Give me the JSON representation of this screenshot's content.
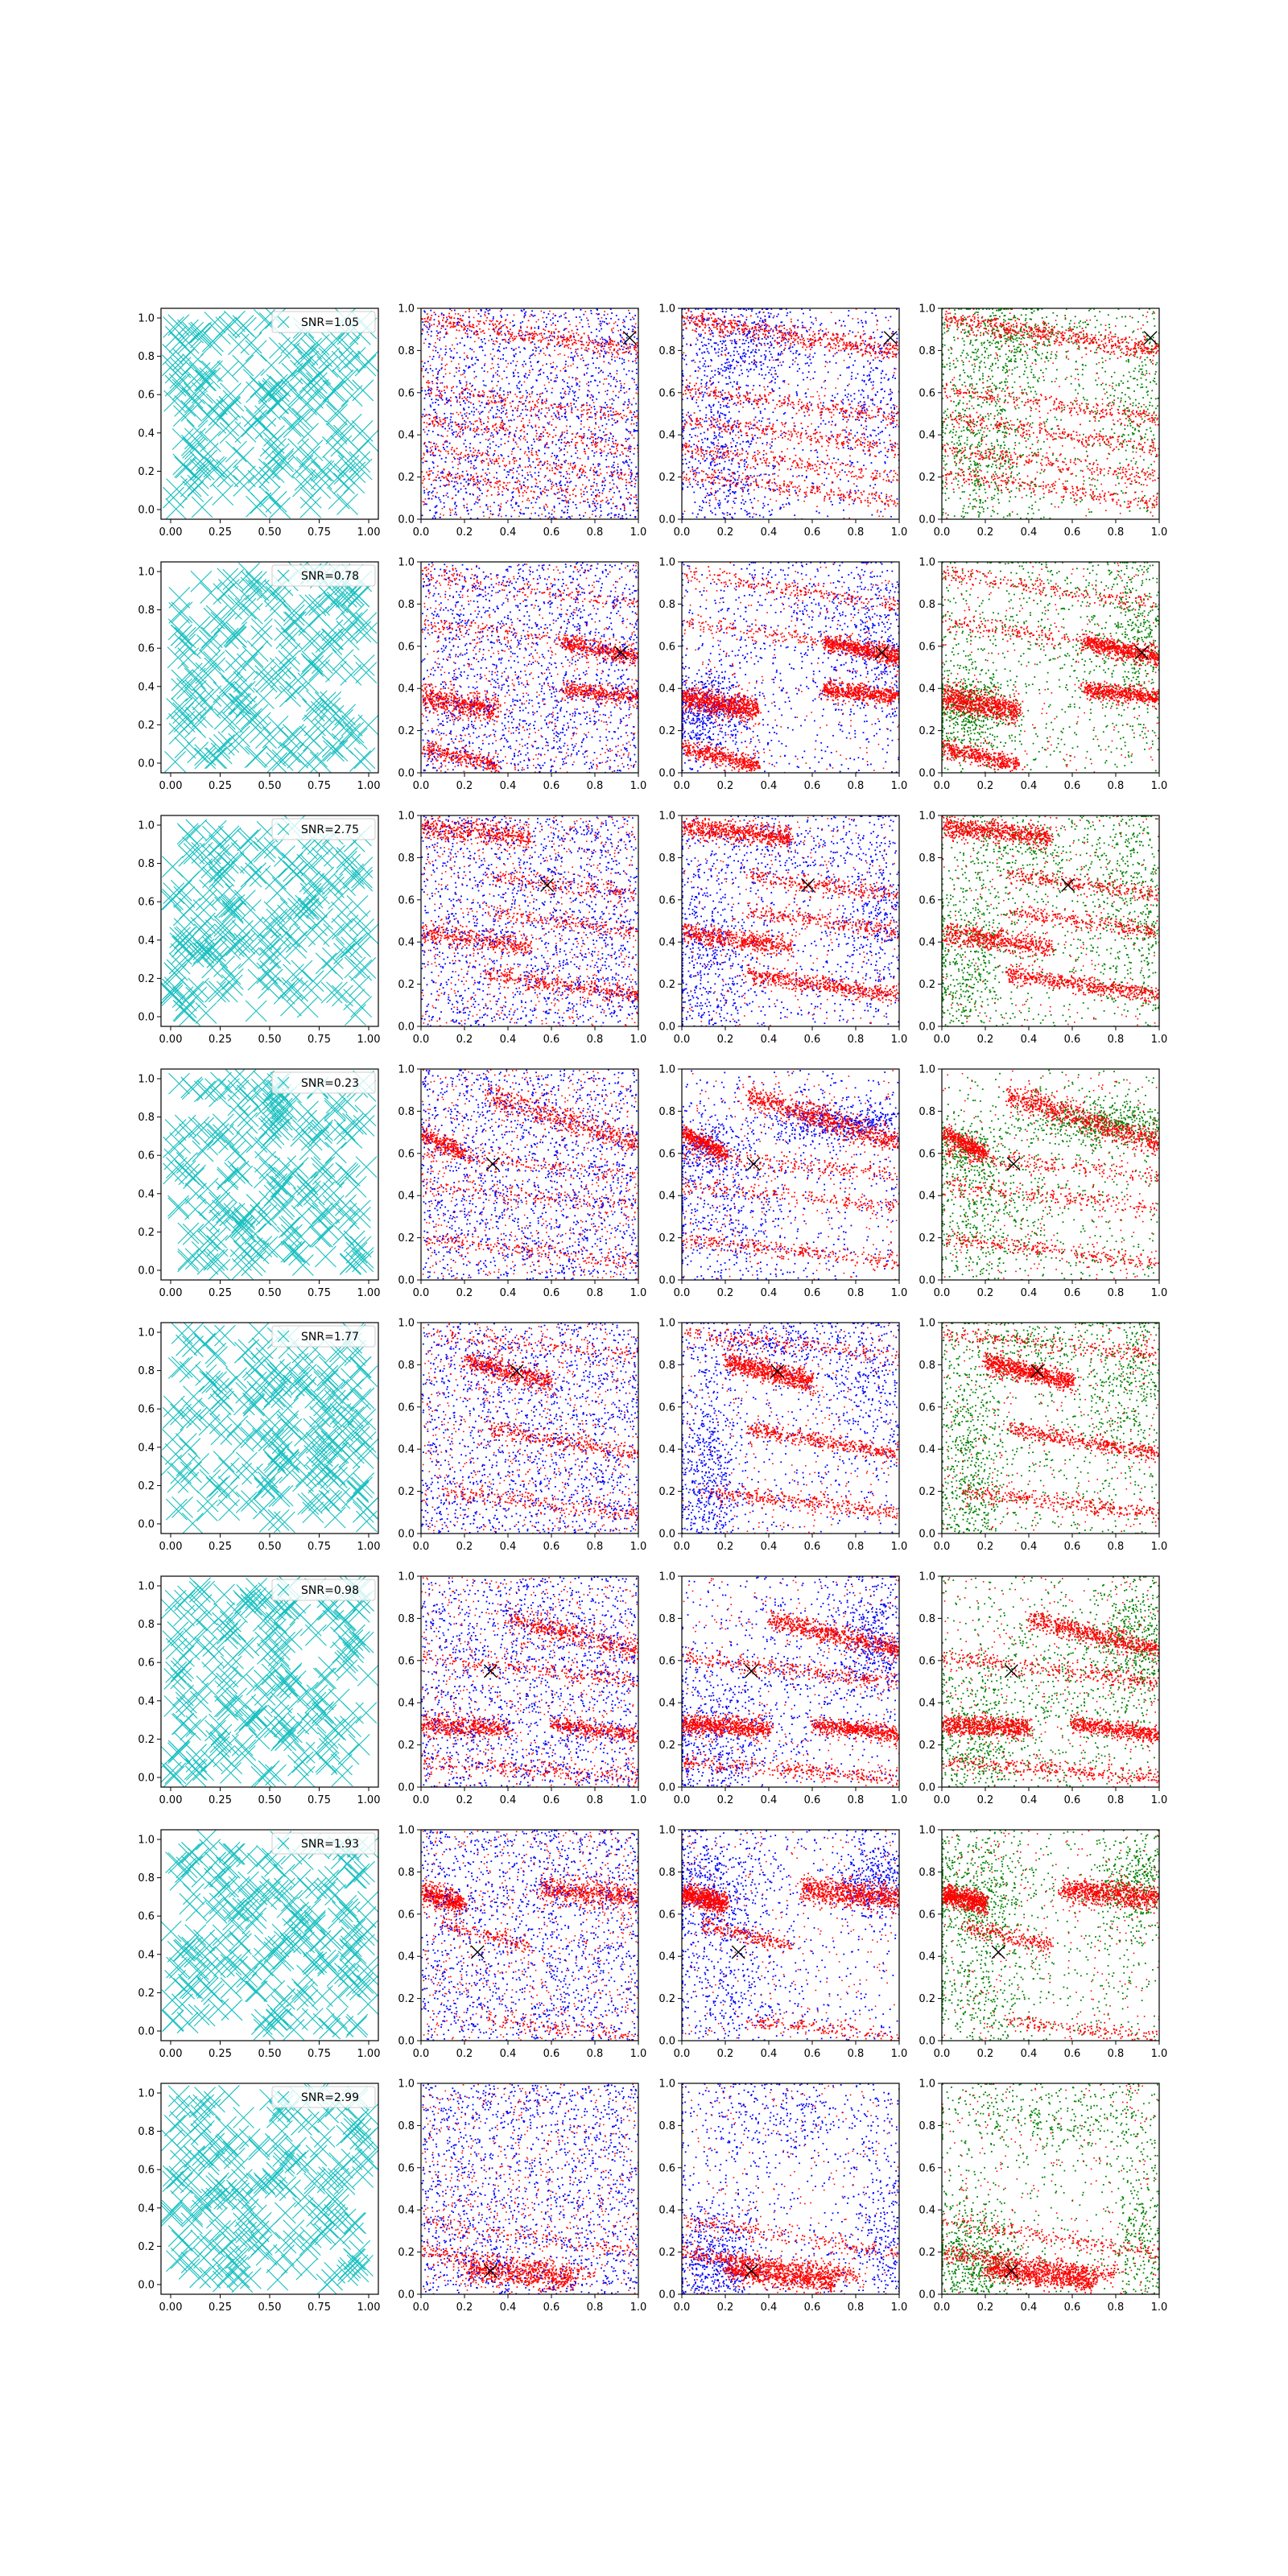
{
  "figure": {
    "rows": 8,
    "columns": 4,
    "colors": {
      "cyan": "#17bfbf",
      "blue": "#0000ff",
      "red": "#ff0000",
      "green": "#008000",
      "black": "#000000"
    }
  },
  "chart_data": [
    {
      "type": "scatter",
      "row": 1,
      "legend": "SNR=1.05",
      "marker": [
        0.96,
        0.86
      ],
      "xlim": [
        0,
        1
      ],
      "ylim": [
        0,
        1
      ],
      "bands": [
        {
          "y0": 0.95,
          "y1": 0.8,
          "x0": 0.0,
          "x1": 1.0,
          "w": 0.025,
          "d": 1.0
        },
        {
          "y0": 0.62,
          "y1": 0.48,
          "x0": 0.0,
          "x1": 1.0,
          "w": 0.02,
          "d": 0.5
        },
        {
          "y0": 0.48,
          "y1": 0.34,
          "x0": 0.0,
          "x1": 1.0,
          "w": 0.02,
          "d": 0.5
        },
        {
          "y0": 0.34,
          "y1": 0.2,
          "x0": 0.0,
          "x1": 1.0,
          "w": 0.02,
          "d": 0.45
        },
        {
          "y0": 0.22,
          "y1": 0.08,
          "x0": 0.0,
          "x1": 1.0,
          "w": 0.02,
          "d": 0.45
        }
      ],
      "clusters": [
        {
          "x": 0.18,
          "y": 0.35,
          "sx": 0.12,
          "sy": 0.3,
          "w": 0.5
        },
        {
          "x": 0.3,
          "y": 0.85,
          "sx": 0.15,
          "sy": 0.1,
          "w": 0.3
        },
        {
          "x": 0.9,
          "y": 0.6,
          "sx": 0.1,
          "sy": 0.2,
          "w": 0.2
        }
      ]
    },
    {
      "type": "scatter",
      "row": 2,
      "legend": "SNR=0.78",
      "marker": [
        0.92,
        0.57
      ],
      "xlim": [
        0,
        1
      ],
      "ylim": [
        0,
        1
      ],
      "bands": [
        {
          "y0": 0.36,
          "y1": 0.3,
          "x0": 0.0,
          "x1": 0.35,
          "w": 0.03,
          "d": 1.4
        },
        {
          "y0": 0.62,
          "y1": 0.55,
          "x0": 0.65,
          "x1": 1.0,
          "w": 0.02,
          "d": 1.0
        },
        {
          "y0": 0.4,
          "y1": 0.36,
          "x0": 0.65,
          "x1": 1.0,
          "w": 0.02,
          "d": 1.0
        },
        {
          "y0": 0.12,
          "y1": 0.04,
          "x0": 0.0,
          "x1": 0.35,
          "w": 0.02,
          "d": 0.8
        },
        {
          "y0": 0.95,
          "y1": 0.8,
          "x0": 0.0,
          "x1": 1.0,
          "w": 0.02,
          "d": 0.4
        },
        {
          "y0": 0.72,
          "y1": 0.58,
          "x0": 0.0,
          "x1": 1.0,
          "w": 0.02,
          "d": 0.4
        }
      ],
      "clusters": [
        {
          "x": 0.12,
          "y": 0.3,
          "sx": 0.1,
          "sy": 0.1,
          "w": 0.45
        },
        {
          "x": 0.9,
          "y": 0.62,
          "sx": 0.1,
          "sy": 0.2,
          "w": 0.35
        },
        {
          "x": 0.5,
          "y": 0.75,
          "sx": 0.3,
          "sy": 0.2,
          "w": 0.2
        }
      ]
    },
    {
      "type": "scatter",
      "row": 3,
      "legend": "SNR=2.75",
      "marker": [
        0.58,
        0.67
      ],
      "xlim": [
        0,
        1
      ],
      "ylim": [
        0,
        1
      ],
      "bands": [
        {
          "y0": 0.95,
          "y1": 0.9,
          "x0": 0.0,
          "x1": 0.5,
          "w": 0.025,
          "d": 1.2
        },
        {
          "y0": 0.45,
          "y1": 0.38,
          "x0": 0.0,
          "x1": 0.5,
          "w": 0.025,
          "d": 1.0
        },
        {
          "y0": 0.25,
          "y1": 0.15,
          "x0": 0.3,
          "x1": 1.0,
          "w": 0.02,
          "d": 1.0
        },
        {
          "y0": 0.72,
          "y1": 0.62,
          "x0": 0.3,
          "x1": 1.0,
          "w": 0.02,
          "d": 0.5
        },
        {
          "y0": 0.55,
          "y1": 0.45,
          "x0": 0.3,
          "x1": 1.0,
          "w": 0.02,
          "d": 0.5
        }
      ],
      "clusters": [
        {
          "x": 0.12,
          "y": 0.3,
          "sx": 0.12,
          "sy": 0.25,
          "w": 0.45
        },
        {
          "x": 0.9,
          "y": 0.55,
          "sx": 0.1,
          "sy": 0.25,
          "w": 0.35
        },
        {
          "x": 0.45,
          "y": 0.85,
          "sx": 0.2,
          "sy": 0.1,
          "w": 0.2
        }
      ]
    },
    {
      "type": "scatter",
      "row": 4,
      "legend": "SNR=0.23",
      "marker": [
        0.33,
        0.55
      ],
      "xlim": [
        0,
        1
      ],
      "ylim": [
        0,
        1
      ],
      "bands": [
        {
          "y0": 0.88,
          "y1": 0.65,
          "x0": 0.3,
          "x1": 1.0,
          "w": 0.03,
          "d": 1.4
        },
        {
          "y0": 0.7,
          "y1": 0.6,
          "x0": 0.0,
          "x1": 0.2,
          "w": 0.02,
          "d": 0.8
        },
        {
          "y0": 0.6,
          "y1": 0.5,
          "x0": 0.0,
          "x1": 1.0,
          "w": 0.02,
          "d": 0.4
        },
        {
          "y0": 0.45,
          "y1": 0.35,
          "x0": 0.0,
          "x1": 1.0,
          "w": 0.02,
          "d": 0.4
        },
        {
          "y0": 0.2,
          "y1": 0.08,
          "x0": 0.0,
          "x1": 1.0,
          "w": 0.02,
          "d": 0.5
        }
      ],
      "clusters": [
        {
          "x": 0.75,
          "y": 0.75,
          "sx": 0.2,
          "sy": 0.05,
          "w": 0.5
        },
        {
          "x": 0.1,
          "y": 0.62,
          "sx": 0.08,
          "sy": 0.08,
          "w": 0.2
        },
        {
          "x": 0.2,
          "y": 0.3,
          "sx": 0.15,
          "sy": 0.2,
          "w": 0.3
        }
      ]
    },
    {
      "type": "scatter",
      "row": 5,
      "legend": "SNR=1.77",
      "marker": [
        0.44,
        0.77
      ],
      "xlim": [
        0,
        1
      ],
      "ylim": [
        0,
        1
      ],
      "bands": [
        {
          "y0": 0.82,
          "y1": 0.72,
          "x0": 0.2,
          "x1": 0.6,
          "w": 0.025,
          "d": 1.4
        },
        {
          "y0": 0.5,
          "y1": 0.38,
          "x0": 0.3,
          "x1": 1.0,
          "w": 0.02,
          "d": 0.8
        },
        {
          "y0": 0.2,
          "y1": 0.1,
          "x0": 0.1,
          "x1": 1.0,
          "w": 0.02,
          "d": 0.6
        },
        {
          "y0": 0.95,
          "y1": 0.85,
          "x0": 0.0,
          "x1": 1.0,
          "w": 0.02,
          "d": 0.4
        }
      ],
      "clusters": [
        {
          "x": 0.12,
          "y": 0.3,
          "sx": 0.08,
          "sy": 0.3,
          "w": 0.55
        },
        {
          "x": 0.85,
          "y": 0.7,
          "sx": 0.12,
          "sy": 0.2,
          "w": 0.3
        },
        {
          "x": 0.4,
          "y": 0.9,
          "sx": 0.15,
          "sy": 0.05,
          "w": 0.15
        }
      ]
    },
    {
      "type": "scatter",
      "row": 6,
      "legend": "SNR=0.98",
      "marker": [
        0.32,
        0.55
      ],
      "xlim": [
        0,
        1
      ],
      "ylim": [
        0,
        1
      ],
      "bands": [
        {
          "y0": 0.8,
          "y1": 0.65,
          "x0": 0.4,
          "x1": 1.0,
          "w": 0.025,
          "d": 1.2
        },
        {
          "y0": 0.3,
          "y1": 0.28,
          "x0": 0.0,
          "x1": 0.4,
          "w": 0.025,
          "d": 1.2
        },
        {
          "y0": 0.3,
          "y1": 0.25,
          "x0": 0.6,
          "x1": 1.0,
          "w": 0.02,
          "d": 1.0
        },
        {
          "y0": 0.12,
          "y1": 0.05,
          "x0": 0.0,
          "x1": 1.0,
          "w": 0.02,
          "d": 0.6
        },
        {
          "y0": 0.62,
          "y1": 0.5,
          "x0": 0.0,
          "x1": 1.0,
          "w": 0.02,
          "d": 0.6
        }
      ],
      "clusters": [
        {
          "x": 0.9,
          "y": 0.7,
          "sx": 0.1,
          "sy": 0.15,
          "w": 0.4
        },
        {
          "x": 0.15,
          "y": 0.2,
          "sx": 0.12,
          "sy": 0.2,
          "w": 0.4
        },
        {
          "x": 0.5,
          "y": 0.5,
          "sx": 0.25,
          "sy": 0.2,
          "w": 0.2
        }
      ]
    },
    {
      "type": "scatter",
      "row": 7,
      "legend": "SNR=1.93",
      "marker": [
        0.26,
        0.42
      ],
      "xlim": [
        0,
        1
      ],
      "ylim": [
        0,
        1
      ],
      "bands": [
        {
          "y0": 0.72,
          "y1": 0.68,
          "x0": 0.55,
          "x1": 1.0,
          "w": 0.03,
          "d": 1.4
        },
        {
          "y0": 0.7,
          "y1": 0.65,
          "x0": 0.0,
          "x1": 0.2,
          "w": 0.025,
          "d": 1.2
        },
        {
          "y0": 0.55,
          "y1": 0.45,
          "x0": 0.1,
          "x1": 0.5,
          "w": 0.02,
          "d": 0.4
        },
        {
          "y0": 0.1,
          "y1": 0.02,
          "x0": 0.3,
          "x1": 1.0,
          "w": 0.02,
          "d": 0.3
        }
      ],
      "clusters": [
        {
          "x": 0.15,
          "y": 0.7,
          "sx": 0.12,
          "sy": 0.15,
          "w": 0.45
        },
        {
          "x": 0.9,
          "y": 0.75,
          "sx": 0.1,
          "sy": 0.1,
          "w": 0.35
        },
        {
          "x": 0.2,
          "y": 0.2,
          "sx": 0.15,
          "sy": 0.15,
          "w": 0.2
        }
      ]
    },
    {
      "type": "scatter",
      "row": 8,
      "legend": "SNR=2.99",
      "marker": [
        0.32,
        0.11
      ],
      "xlim": [
        0,
        1
      ],
      "ylim": [
        0,
        1
      ],
      "bands": [
        {
          "y0": 0.12,
          "y1": 0.06,
          "x0": 0.2,
          "x1": 0.7,
          "w": 0.025,
          "d": 1.4
        },
        {
          "y0": 0.2,
          "y1": 0.1,
          "x0": 0.0,
          "x1": 0.8,
          "w": 0.02,
          "d": 0.8
        },
        {
          "y0": 0.35,
          "y1": 0.2,
          "x0": 0.0,
          "x1": 1.0,
          "w": 0.02,
          "d": 0.4
        }
      ],
      "clusters": [
        {
          "x": 0.15,
          "y": 0.15,
          "sx": 0.1,
          "sy": 0.15,
          "w": 0.45
        },
        {
          "x": 0.92,
          "y": 0.2,
          "sx": 0.07,
          "sy": 0.3,
          "w": 0.3
        },
        {
          "x": 0.5,
          "y": 0.85,
          "sx": 0.3,
          "sy": 0.1,
          "w": 0.25
        }
      ]
    }
  ]
}
